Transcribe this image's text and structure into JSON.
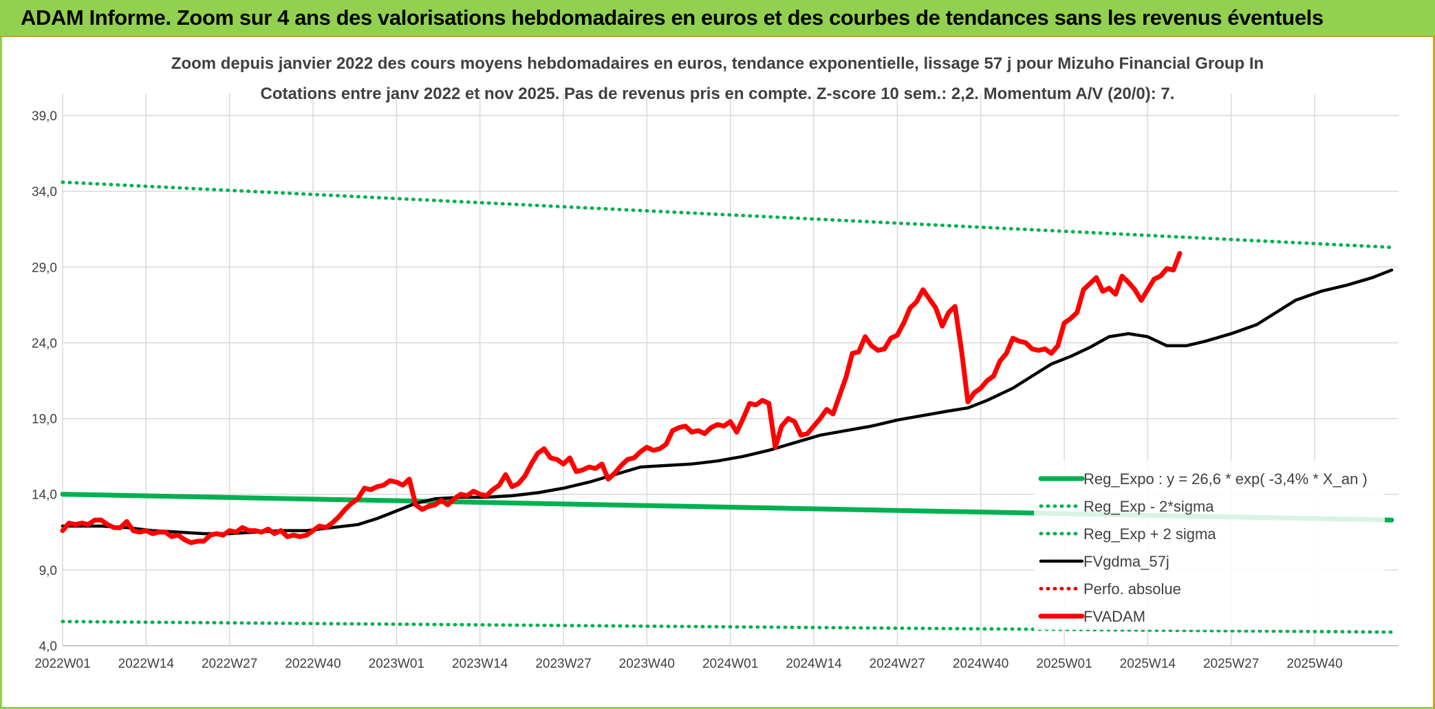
{
  "page": {
    "banner_title": "ADAM Informe. Zoom sur 4 ans des valorisations hebdomadaires en euros et des courbes de tendances sans les revenus éventuels"
  },
  "colors": {
    "banner_bg": "#92d050",
    "trend_green": "#00b050",
    "fv_black": "#000000",
    "fvadam_red": "#ff0000",
    "perf_red": "#e00000",
    "grid": "#d9d9d9",
    "text": "#404040"
  },
  "chart_data": {
    "type": "line",
    "title": "Zoom depuis janvier 2022 des cours moyens hebdomadaires en euros, tendance exponentielle, lissage 57 j pour Mizuho Financial Group In",
    "subtitle": "Cotations entre janv 2022 et nov 2025. Pas de revenus pris en compte. Z-score 10 sem.: 2,2. Momentum A/V (20/0): 7.",
    "xlabel": "",
    "ylabel": "",
    "ylim": [
      4,
      40
    ],
    "yticks": [
      "4,0",
      "9,0",
      "14,0",
      "19,0",
      "24,0",
      "29,0",
      "34,0",
      "39,0"
    ],
    "ytick_values": [
      4,
      9,
      14,
      19,
      24,
      29,
      34,
      39
    ],
    "xticks": [
      "2022W01",
      "2022W14",
      "2022W27",
      "2022W40",
      "2023W01",
      "2023W14",
      "2023W27",
      "2023W40",
      "2024W01",
      "2024W14",
      "2024W27",
      "2024W40",
      "2025W01",
      "2025W14",
      "2025W27",
      "2025W40"
    ],
    "xtick_weeks": [
      0,
      13,
      26,
      39,
      52,
      65,
      78,
      91,
      104,
      117,
      130,
      143,
      156,
      169,
      182,
      195
    ],
    "x_range": [
      0,
      207
    ],
    "grid": true,
    "legend_position": "bottom-right",
    "series": [
      {
        "name": "Reg_Expo : y = 26,6 * exp( -3,4% *  X_an )",
        "style": "solid-thick",
        "color": "#00b050",
        "points": [
          [
            0,
            14.0
          ],
          [
            207,
            12.3
          ]
        ]
      },
      {
        "name": "Reg_Exp - 2*sigma",
        "style": "dotted",
        "color": "#00b050",
        "points": [
          [
            0,
            5.6
          ],
          [
            207,
            4.9
          ]
        ]
      },
      {
        "name": "Reg_Exp + 2 sigma",
        "style": "dotted",
        "color": "#00b050",
        "points": [
          [
            0,
            34.6
          ],
          [
            207,
            30.3
          ]
        ]
      },
      {
        "name": "FVgdma_57j",
        "style": "solid",
        "color": "#000000",
        "points": [
          [
            0,
            11.9
          ],
          [
            6,
            11.9
          ],
          [
            10,
            11.8
          ],
          [
            14,
            11.6
          ],
          [
            18,
            11.5
          ],
          [
            22,
            11.4
          ],
          [
            26,
            11.4
          ],
          [
            30,
            11.5
          ],
          [
            34,
            11.6
          ],
          [
            38,
            11.6
          ],
          [
            42,
            11.8
          ],
          [
            46,
            12.0
          ],
          [
            49,
            12.4
          ],
          [
            52,
            12.9
          ],
          [
            55,
            13.4
          ],
          [
            58,
            13.7
          ],
          [
            62,
            13.8
          ],
          [
            66,
            13.8
          ],
          [
            70,
            13.9
          ],
          [
            74,
            14.1
          ],
          [
            78,
            14.4
          ],
          [
            82,
            14.8
          ],
          [
            86,
            15.3
          ],
          [
            90,
            15.8
          ],
          [
            94,
            15.9
          ],
          [
            98,
            16.0
          ],
          [
            102,
            16.2
          ],
          [
            106,
            16.5
          ],
          [
            110,
            16.9
          ],
          [
            114,
            17.4
          ],
          [
            118,
            17.9
          ],
          [
            122,
            18.2
          ],
          [
            126,
            18.5
          ],
          [
            130,
            18.9
          ],
          [
            134,
            19.2
          ],
          [
            138,
            19.5
          ],
          [
            141,
            19.7
          ],
          [
            144,
            20.2
          ],
          [
            148,
            21.0
          ],
          [
            151,
            21.8
          ],
          [
            154,
            22.6
          ],
          [
            157,
            23.1
          ],
          [
            160,
            23.7
          ],
          [
            163,
            24.4
          ],
          [
            166,
            24.6
          ],
          [
            169,
            24.4
          ],
          [
            172,
            23.8
          ],
          [
            175,
            23.8
          ],
          [
            178,
            24.1
          ],
          [
            182,
            24.6
          ],
          [
            186,
            25.2
          ],
          [
            189,
            26.0
          ],
          [
            192,
            26.8
          ],
          [
            196,
            27.4
          ],
          [
            200,
            27.8
          ],
          [
            204,
            28.3
          ],
          [
            207,
            28.8
          ]
        ]
      },
      {
        "name": "Perfo. absolue",
        "style": "dotted",
        "color": "#e00000",
        "points": []
      },
      {
        "name": "FVADAM",
        "style": "solid-thick",
        "color": "#ff0000",
        "points": [
          [
            0,
            11.6
          ],
          [
            1,
            12.1
          ],
          [
            2,
            12.0
          ],
          [
            3,
            12.1
          ],
          [
            4,
            12.0
          ],
          [
            5,
            12.3
          ],
          [
            6,
            12.3
          ],
          [
            7,
            12.0
          ],
          [
            8,
            11.8
          ],
          [
            9,
            11.8
          ],
          [
            10,
            12.2
          ],
          [
            11,
            11.6
          ],
          [
            12,
            11.5
          ],
          [
            13,
            11.6
          ],
          [
            14,
            11.4
          ],
          [
            15,
            11.5
          ],
          [
            16,
            11.5
          ],
          [
            17,
            11.2
          ],
          [
            18,
            11.3
          ],
          [
            19,
            11.0
          ],
          [
            20,
            10.8
          ],
          [
            21,
            10.9
          ],
          [
            22,
            10.9
          ],
          [
            23,
            11.3
          ],
          [
            24,
            11.4
          ],
          [
            25,
            11.3
          ],
          [
            26,
            11.6
          ],
          [
            27,
            11.5
          ],
          [
            28,
            11.8
          ],
          [
            29,
            11.6
          ],
          [
            30,
            11.6
          ],
          [
            31,
            11.5
          ],
          [
            32,
            11.7
          ],
          [
            33,
            11.4
          ],
          [
            34,
            11.6
          ],
          [
            35,
            11.2
          ],
          [
            36,
            11.3
          ],
          [
            37,
            11.2
          ],
          [
            38,
            11.3
          ],
          [
            39,
            11.6
          ],
          [
            40,
            11.9
          ],
          [
            41,
            11.8
          ],
          [
            42,
            12.1
          ],
          [
            43,
            12.5
          ],
          [
            44,
            13.0
          ],
          [
            45,
            13.4
          ],
          [
            46,
            13.7
          ],
          [
            47,
            14.4
          ],
          [
            48,
            14.3
          ],
          [
            49,
            14.5
          ],
          [
            50,
            14.6
          ],
          [
            51,
            14.9
          ],
          [
            52,
            14.8
          ],
          [
            53,
            14.6
          ],
          [
            54,
            15.0
          ],
          [
            55,
            13.3
          ],
          [
            56,
            13.0
          ],
          [
            57,
            13.2
          ],
          [
            58,
            13.3
          ],
          [
            59,
            13.6
          ],
          [
            60,
            13.3
          ],
          [
            61,
            13.7
          ],
          [
            62,
            14.0
          ],
          [
            63,
            13.9
          ],
          [
            64,
            14.2
          ],
          [
            65,
            14.0
          ],
          [
            66,
            13.9
          ],
          [
            67,
            14.3
          ],
          [
            68,
            14.6
          ],
          [
            69,
            15.3
          ],
          [
            70,
            14.5
          ],
          [
            71,
            14.7
          ],
          [
            72,
            15.2
          ],
          [
            73,
            16.0
          ],
          [
            74,
            16.7
          ],
          [
            75,
            17.0
          ],
          [
            76,
            16.4
          ],
          [
            77,
            16.3
          ],
          [
            78,
            16.0
          ],
          [
            79,
            16.4
          ],
          [
            80,
            15.5
          ],
          [
            81,
            15.6
          ],
          [
            82,
            15.8
          ],
          [
            83,
            15.7
          ],
          [
            84,
            16.0
          ],
          [
            85,
            15.0
          ],
          [
            86,
            15.4
          ],
          [
            87,
            15.9
          ],
          [
            88,
            16.3
          ],
          [
            89,
            16.4
          ],
          [
            90,
            16.8
          ],
          [
            91,
            17.1
          ],
          [
            92,
            16.9
          ],
          [
            93,
            17.0
          ],
          [
            94,
            17.3
          ],
          [
            95,
            18.2
          ],
          [
            96,
            18.4
          ],
          [
            97,
            18.5
          ],
          [
            98,
            18.1
          ],
          [
            99,
            18.2
          ],
          [
            100,
            18.0
          ],
          [
            101,
            18.4
          ],
          [
            102,
            18.6
          ],
          [
            103,
            18.5
          ],
          [
            104,
            18.8
          ],
          [
            105,
            18.1
          ],
          [
            106,
            19.0
          ],
          [
            107,
            20.0
          ],
          [
            108,
            19.9
          ],
          [
            109,
            20.2
          ],
          [
            110,
            20.0
          ],
          [
            111,
            17.1
          ],
          [
            112,
            18.5
          ],
          [
            113,
            19.0
          ],
          [
            114,
            18.8
          ],
          [
            115,
            17.9
          ],
          [
            116,
            18.0
          ],
          [
            117,
            18.5
          ],
          [
            118,
            19.0
          ],
          [
            119,
            19.6
          ],
          [
            120,
            19.3
          ],
          [
            121,
            20.5
          ],
          [
            122,
            21.7
          ],
          [
            123,
            23.3
          ],
          [
            124,
            23.4
          ],
          [
            125,
            24.4
          ],
          [
            126,
            23.8
          ],
          [
            127,
            23.5
          ],
          [
            128,
            23.6
          ],
          [
            129,
            24.3
          ],
          [
            130,
            24.5
          ],
          [
            131,
            25.3
          ],
          [
            132,
            26.3
          ],
          [
            133,
            26.7
          ],
          [
            134,
            27.5
          ],
          [
            135,
            26.9
          ],
          [
            136,
            26.3
          ],
          [
            137,
            25.1
          ],
          [
            138,
            26.0
          ],
          [
            139,
            26.4
          ],
          [
            140,
            23.5
          ],
          [
            141,
            20.1
          ],
          [
            142,
            20.7
          ],
          [
            143,
            21.0
          ],
          [
            144,
            21.5
          ],
          [
            145,
            21.8
          ],
          [
            146,
            22.8
          ],
          [
            147,
            23.3
          ],
          [
            148,
            24.3
          ],
          [
            149,
            24.1
          ],
          [
            150,
            24.0
          ],
          [
            151,
            23.6
          ],
          [
            152,
            23.5
          ],
          [
            153,
            23.6
          ],
          [
            154,
            23.3
          ],
          [
            155,
            23.8
          ],
          [
            156,
            25.3
          ],
          [
            157,
            25.6
          ],
          [
            158,
            26.0
          ],
          [
            159,
            27.5
          ],
          [
            160,
            27.9
          ],
          [
            161,
            28.3
          ],
          [
            162,
            27.4
          ],
          [
            163,
            27.6
          ],
          [
            164,
            27.2
          ],
          [
            165,
            28.4
          ],
          [
            166,
            28.0
          ],
          [
            167,
            27.5
          ],
          [
            168,
            26.8
          ],
          [
            169,
            27.5
          ],
          [
            170,
            28.2
          ],
          [
            171,
            28.4
          ],
          [
            172,
            28.9
          ],
          [
            173,
            28.8
          ],
          [
            174,
            29.9
          ]
        ]
      }
    ]
  }
}
